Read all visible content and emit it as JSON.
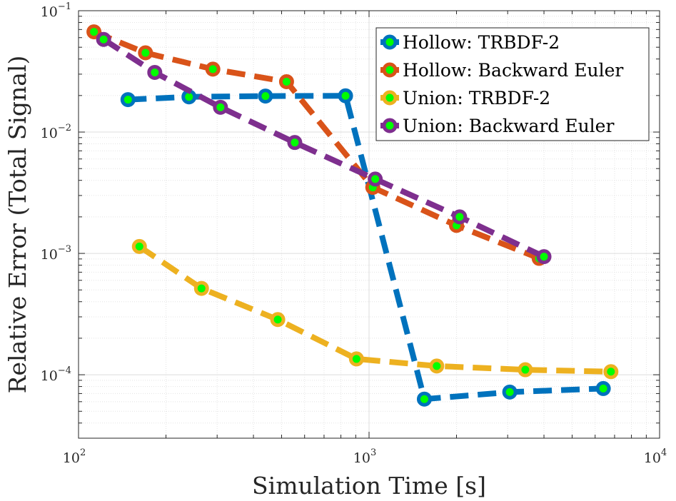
{
  "chart_data": {
    "type": "line",
    "title": "",
    "xlabel": "Simulation Time [s]",
    "ylabel": "Relative Error (Total Signal)",
    "xscale": "log",
    "yscale": "log",
    "xlim": [
      100,
      10000
    ],
    "ylim": [
      3e-05,
      0.1
    ],
    "grid": true,
    "minor_grid": true,
    "legend_position": "top-right",
    "x_ticks": [
      {
        "base": "10",
        "exp": "2",
        "value": 100
      },
      {
        "base": "10",
        "exp": "3",
        "value": 1000
      },
      {
        "base": "10",
        "exp": "4",
        "value": 10000
      }
    ],
    "y_ticks": [
      {
        "base": "10",
        "exp": "−4",
        "value": 0.0001
      },
      {
        "base": "10",
        "exp": "−3",
        "value": 0.001
      },
      {
        "base": "10",
        "exp": "−2",
        "value": 0.01
      },
      {
        "base": "10",
        "exp": "−1",
        "value": 0.1
      }
    ],
    "marker_fill_color": "#00ff00",
    "series": [
      {
        "name": "Hollow: TRBDF-2",
        "color": "#0072bd",
        "x": [
          148,
          240,
          440,
          830,
          1550,
          3050,
          6400
        ],
        "y": [
          0.0185,
          0.0195,
          0.0198,
          0.0199,
          6.3e-05,
          7.2e-05,
          7.7e-05
        ]
      },
      {
        "name": "Hollow: Backward Euler",
        "color": "#d95319",
        "x": [
          113,
          170,
          290,
          520,
          1030,
          2000,
          3850
        ],
        "y": [
          0.067,
          0.045,
          0.033,
          0.026,
          0.0035,
          0.0017,
          0.00091
        ]
      },
      {
        "name": "Union: TRBDF-2",
        "color": "#edb120",
        "x": [
          162,
          265,
          485,
          905,
          1710,
          3450,
          6800
        ],
        "y": [
          0.00114,
          0.000515,
          0.000285,
          0.000135,
          0.000118,
          0.00011,
          0.000106
        ]
      },
      {
        "name": "Union: Backward Euler",
        "color": "#7e2f8e",
        "x": [
          122,
          183,
          308,
          555,
          1050,
          2050,
          4000
        ],
        "y": [
          0.058,
          0.031,
          0.016,
          0.0082,
          0.0041,
          0.002,
          0.00094
        ]
      }
    ]
  }
}
